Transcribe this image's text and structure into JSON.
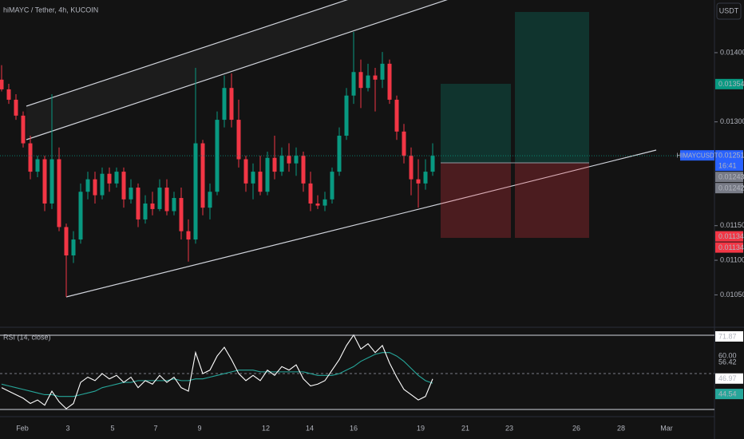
{
  "chart_data": {
    "type": "candlestick",
    "title": "hiMAYC / Tether, 4h, KUCOIN",
    "currency": "USDT",
    "symbol": "HIMAYCUSDT",
    "countdown": "16:41",
    "up_color": "#089981",
    "down_color": "#f23645",
    "ohlc": [
      [
        0.01361,
        0.01382,
        0.01344,
        0.01347
      ],
      [
        0.01347,
        0.01355,
        0.01326,
        0.01332
      ],
      [
        0.01332,
        0.0134,
        0.01303,
        0.01309
      ],
      [
        0.01309,
        0.01315,
        0.01263,
        0.01269
      ],
      [
        0.01269,
        0.0128,
        0.01217,
        0.01228
      ],
      [
        0.01228,
        0.01251,
        0.0122,
        0.01246
      ],
      [
        0.01246,
        0.01251,
        0.01171,
        0.01182
      ],
      [
        0.01182,
        0.0134,
        0.01174,
        0.01246
      ],
      [
        0.01246,
        0.01263,
        0.01142,
        0.01148
      ],
      [
        0.01148,
        0.01153,
        0.01047,
        0.01107
      ],
      [
        0.01107,
        0.01142,
        0.01096,
        0.0113
      ],
      [
        0.0113,
        0.01211,
        0.01124,
        0.01199
      ],
      [
        0.01199,
        0.01228,
        0.01188,
        0.01217
      ],
      [
        0.01217,
        0.01228,
        0.01182,
        0.01194
      ],
      [
        0.01194,
        0.01234,
        0.01188,
        0.01225
      ],
      [
        0.01225,
        0.01234,
        0.01199,
        0.01211
      ],
      [
        0.01211,
        0.01234,
        0.01205,
        0.01228
      ],
      [
        0.01228,
        0.01234,
        0.01176,
        0.01188
      ],
      [
        0.01188,
        0.01217,
        0.01182,
        0.01205
      ],
      [
        0.01205,
        0.01211,
        0.01148,
        0.01159
      ],
      [
        0.01159,
        0.01194,
        0.01153,
        0.01182
      ],
      [
        0.01182,
        0.01199,
        0.01165,
        0.01174
      ],
      [
        0.01174,
        0.01217,
        0.01171,
        0.01205
      ],
      [
        0.01205,
        0.01217,
        0.01165,
        0.01171
      ],
      [
        0.01171,
        0.01199,
        0.01165,
        0.0119
      ],
      [
        0.0119,
        0.01205,
        0.0113,
        0.01142
      ],
      [
        0.01142,
        0.01159,
        0.01098,
        0.0113
      ],
      [
        0.0113,
        0.01378,
        0.01124,
        0.01269
      ],
      [
        0.01269,
        0.01274,
        0.01165,
        0.01176
      ],
      [
        0.01176,
        0.01211,
        0.01159,
        0.01199
      ],
      [
        0.01199,
        0.01315,
        0.01194,
        0.01303
      ],
      [
        0.01303,
        0.01367,
        0.01292,
        0.01349
      ],
      [
        0.01349,
        0.0137,
        0.01292,
        0.01303
      ],
      [
        0.01303,
        0.01332,
        0.01234,
        0.01246
      ],
      [
        0.01246,
        0.01251,
        0.01199,
        0.01211
      ],
      [
        0.01211,
        0.0124,
        0.01188,
        0.01228
      ],
      [
        0.01228,
        0.01251,
        0.01194,
        0.01199
      ],
      [
        0.01199,
        0.01257,
        0.01194,
        0.01248
      ],
      [
        0.01248,
        0.0128,
        0.01217,
        0.01228
      ],
      [
        0.01228,
        0.01263,
        0.01222,
        0.01251
      ],
      [
        0.01251,
        0.01269,
        0.01228,
        0.0124
      ],
      [
        0.0124,
        0.01263,
        0.01222,
        0.01251
      ],
      [
        0.01251,
        0.01257,
        0.01199,
        0.01211
      ],
      [
        0.01211,
        0.01228,
        0.01171,
        0.01182
      ],
      [
        0.01182,
        0.01194,
        0.01174,
        0.01179
      ],
      [
        0.01179,
        0.01199,
        0.01171,
        0.01188
      ],
      [
        0.01188,
        0.01234,
        0.01182,
        0.01228
      ],
      [
        0.01228,
        0.01292,
        0.01222,
        0.0128
      ],
      [
        0.0128,
        0.01349,
        0.01274,
        0.01338
      ],
      [
        0.01338,
        0.0143,
        0.01326,
        0.01372
      ],
      [
        0.01372,
        0.0139,
        0.0132,
        0.01349
      ],
      [
        0.01349,
        0.01384,
        0.01344,
        0.01367
      ],
      [
        0.01367,
        0.01378,
        0.01315,
        0.01361
      ],
      [
        0.01361,
        0.01401,
        0.01349,
        0.01384
      ],
      [
        0.01384,
        0.0139,
        0.01326,
        0.01332
      ],
      [
        0.01332,
        0.01338,
        0.01274,
        0.01286
      ],
      [
        0.01286,
        0.01297,
        0.0124,
        0.01251
      ],
      [
        0.01251,
        0.01263,
        0.01194,
        0.01217
      ],
      [
        0.01217,
        0.01246,
        0.01176,
        0.01211
      ],
      [
        0.01211,
        0.01246,
        0.01202,
        0.01228
      ],
      [
        0.01228,
        0.01269,
        0.01222,
        0.01251
      ]
    ],
    "ylim": [
      0.010055,
      0.014761
    ],
    "yticks": [
      {
        "value": 0.014,
        "label": "0.01400"
      },
      {
        "value": 0.013,
        "label": "0.01300"
      },
      {
        "value": 0.0115,
        "label": "0.01150"
      },
      {
        "value": 0.011,
        "label": "0.01100"
      },
      {
        "value": 0.0105,
        "label": "0.01050"
      }
    ],
    "price_tags": [
      {
        "value": 0.01354,
        "label": "0.01354",
        "color": "#089981"
      },
      {
        "value": 0.01251,
        "label": "0.01251",
        "color": "#2962ff"
      },
      {
        "value": 0.01243,
        "label": "0.01243",
        "color": "#787b86"
      },
      {
        "value": 0.01242,
        "label": "0.01242",
        "color": "#787b86"
      },
      {
        "value": 0.01134,
        "label": "0.01134",
        "color": "#f23645"
      },
      {
        "value": 0.01134,
        "label": "0.01134",
        "color": "#f23645"
      }
    ],
    "xticks": [
      "Feb",
      "3",
      "5",
      "7",
      "9",
      "12",
      "14",
      "16",
      "19",
      "21",
      "23",
      "26",
      "28",
      "Mar"
    ],
    "rsi": {
      "title": "RSI (14, close)",
      "color": "#ffffff",
      "ma_color": "#26a69a",
      "values": [
        42,
        40,
        38,
        36,
        33,
        35,
        32,
        40,
        34,
        30,
        33,
        45,
        48,
        46,
        50,
        47,
        49,
        45,
        48,
        42,
        46,
        44,
        49,
        45,
        48,
        42,
        40,
        62,
        50,
        52,
        60,
        65,
        58,
        50,
        46,
        49,
        46,
        52,
        49,
        54,
        52,
        55,
        47,
        43,
        44,
        46,
        52,
        58,
        66,
        72,
        64,
        67,
        62,
        66,
        56,
        48,
        41,
        38,
        35,
        37,
        46.97
      ],
      "ma": [
        44,
        43,
        42,
        41,
        40,
        39,
        38,
        38,
        37,
        37,
        37,
        38,
        39,
        40,
        42,
        43,
        44,
        45,
        45,
        46,
        46,
        46,
        46,
        46,
        47,
        46,
        46,
        47,
        47,
        48,
        49,
        50,
        51,
        52,
        52,
        52,
        51,
        51,
        51,
        51,
        51,
        51,
        51,
        50,
        49,
        49,
        49,
        50,
        52,
        54,
        57,
        59,
        61,
        62,
        62,
        60,
        57,
        53,
        49,
        46,
        44.54
      ],
      "ylim": [
        26.4,
        76.4
      ],
      "axis_labels": [
        71.87,
        {
          "value": 60,
          "label": "60.00"
        },
        56.42,
        46.97,
        44.54
      ]
    }
  }
}
